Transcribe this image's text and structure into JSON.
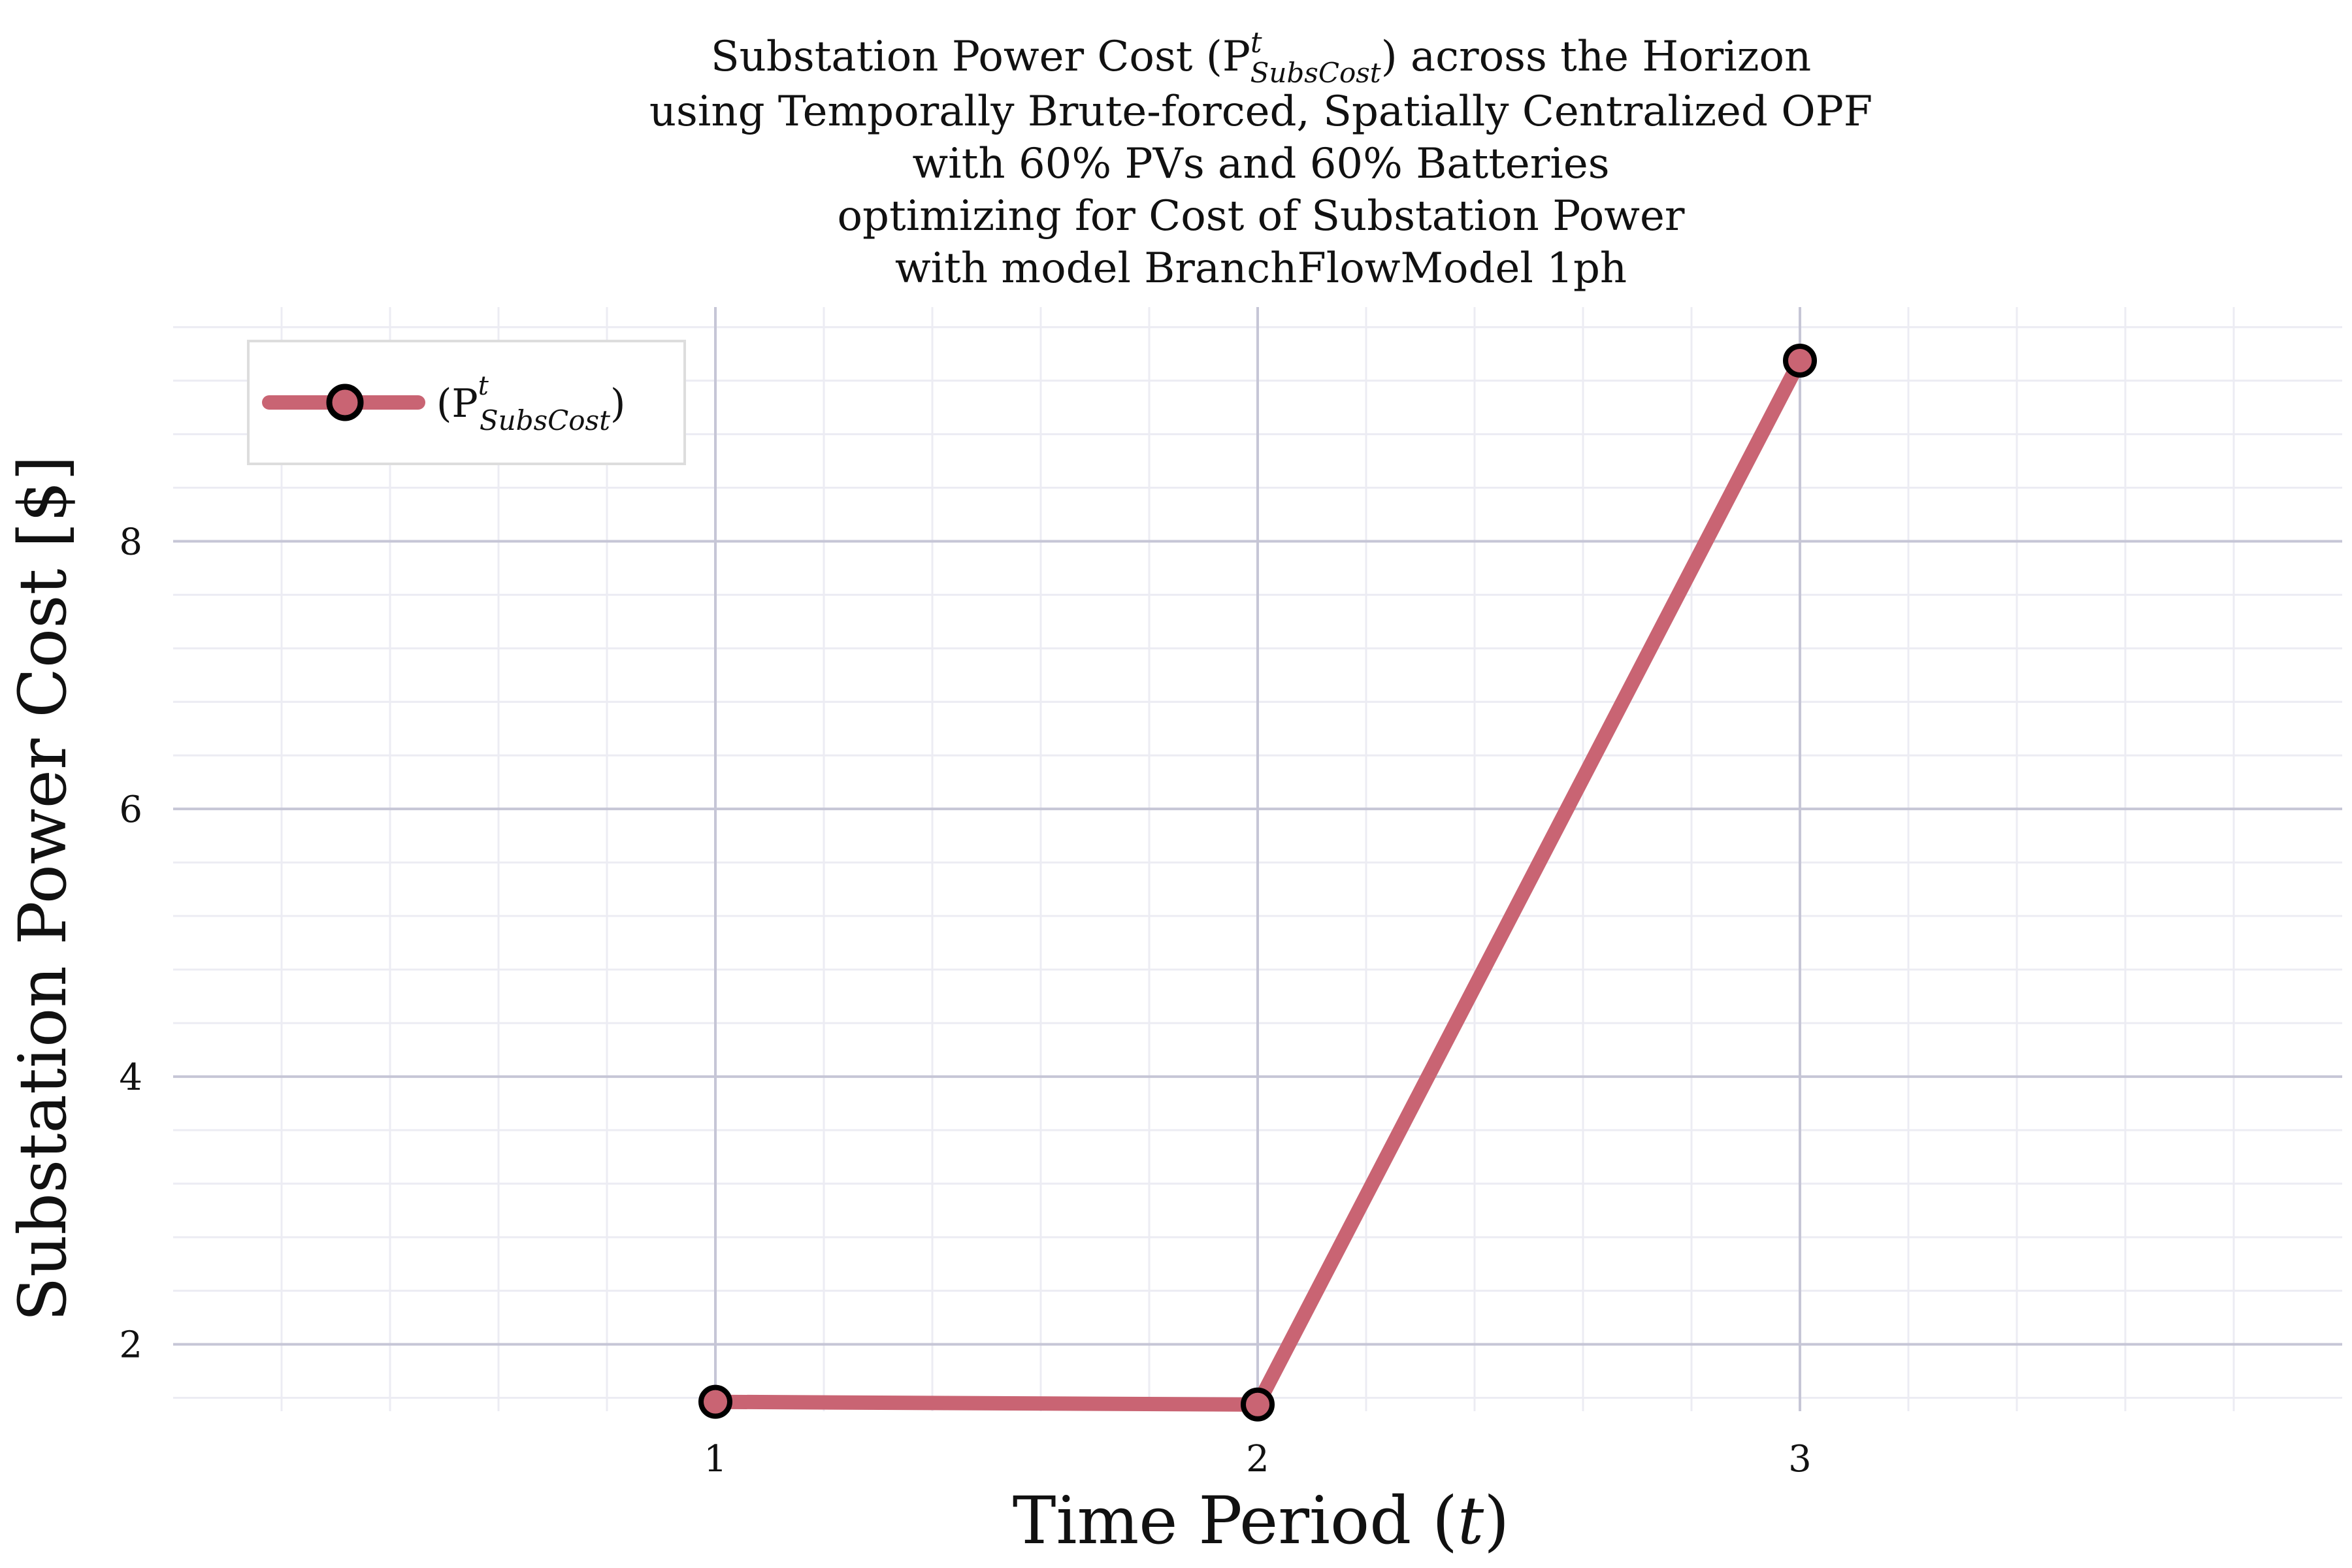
{
  "chart_data": {
    "type": "line",
    "title_lines": [
      "Substation Power Cost (P",
      "using Temporally Brute-forced, Spatially Centralized OPF",
      "with 60% PVs and 60% Batteries",
      "optimizing for Cost of Substation Power",
      "with model BranchFlowModel 1ph"
    ],
    "title_symbol": {
      "sup": "t",
      "sub": "SubsCost",
      "tail": ") across the Horizon"
    },
    "xlabel": {
      "prefix": "Time Period (",
      "var": "t",
      "suffix": ")"
    },
    "ylabel": "Substation Power Cost [$]",
    "x": [
      1,
      2,
      3
    ],
    "series": [
      {
        "name": "(P",
        "name_sup": "t",
        "name_sub": "SubsCost",
        "name_tail": ")",
        "values": [
          1.57,
          1.55,
          9.35
        ],
        "color": "#c96473"
      }
    ],
    "xlim": [
      0.0,
      4.0
    ],
    "ylim": [
      1.5,
      9.75
    ],
    "xticks": [
      "1",
      "2",
      "3"
    ],
    "xtick_values": [
      1,
      2,
      3
    ],
    "yticks": [
      "2",
      "4",
      "6",
      "8"
    ],
    "ytick_values": [
      2,
      4,
      6,
      8
    ],
    "grid": true,
    "minor_grid": true,
    "legend_position": "top-left"
  }
}
